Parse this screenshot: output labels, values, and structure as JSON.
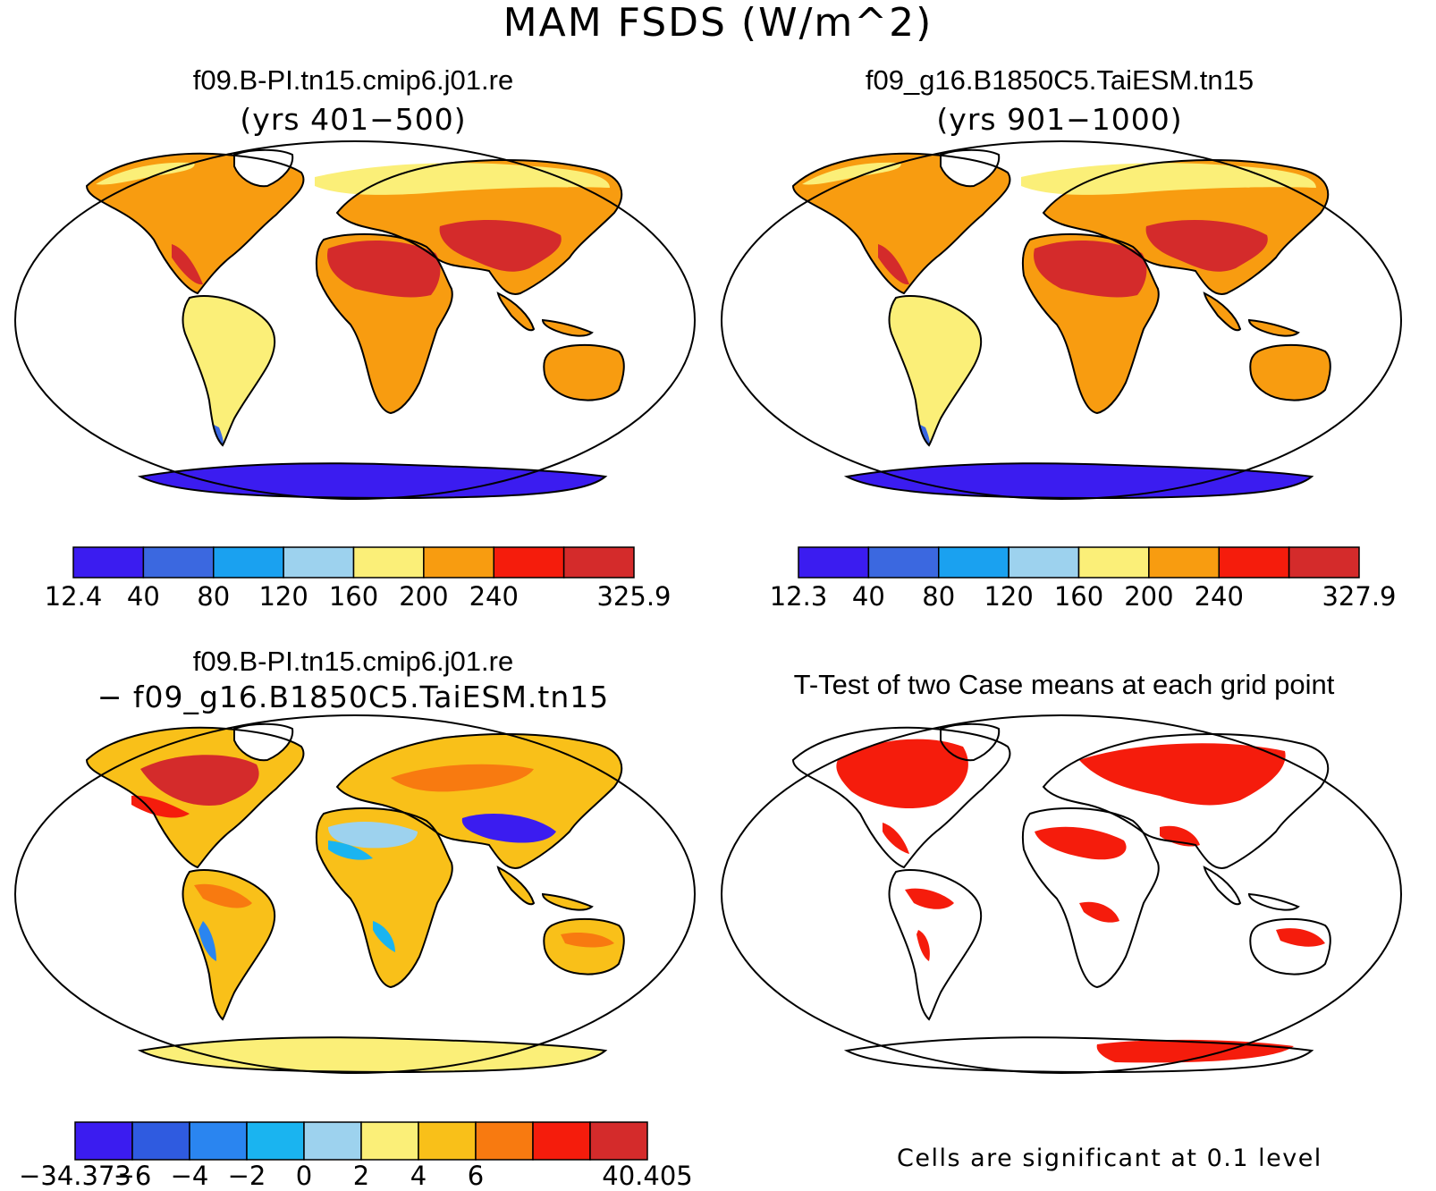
{
  "figure": {
    "title": "MAM FSDS (W/m^2)"
  },
  "panels": [
    {
      "id": "case1",
      "title": "f09.B-PI.tn15.cmip6.j01.re",
      "subtitle": "(yrs 401−500)",
      "colorbar": {
        "colors": [
          "#3b1cf0",
          "#3b68e0",
          "#1aa1f0",
          "#9dd2ee",
          "#fbef78",
          "#f89c10",
          "#f51c0c",
          "#d42b2b"
        ],
        "labels": [
          "12.4",
          "40",
          "80",
          "120",
          "160",
          "200",
          "240",
          "325.9"
        ]
      }
    },
    {
      "id": "case2",
      "title": "f09_g16.B1850C5.TaiESM.tn15",
      "subtitle": "(yrs 901−1000)",
      "colorbar": {
        "colors": [
          "#3b1cf0",
          "#3b68e0",
          "#1aa1f0",
          "#9dd2ee",
          "#fbef78",
          "#f89c10",
          "#f51c0c",
          "#d42b2b"
        ],
        "labels": [
          "12.3",
          "40",
          "80",
          "120",
          "160",
          "200",
          "240",
          "327.9"
        ]
      }
    },
    {
      "id": "diff",
      "title": "f09.B-PI.tn15.cmip6.j01.re",
      "subtitle": "− f09_g16.B1850C5.TaiESM.tn15",
      "colorbar": {
        "colors": [
          "#3b1cf0",
          "#2f5be0",
          "#2a85f0",
          "#1ab4f0",
          "#9dd2ee",
          "#fbef78",
          "#f9c019",
          "#f87a10",
          "#f51c0c",
          "#d42b2b"
        ],
        "labels": [
          "−34.373",
          "−6",
          "−4",
          "−2",
          "0",
          "2",
          "4",
          "6",
          "40.405"
        ]
      }
    },
    {
      "id": "ttest",
      "title": "T-Test of two Case means at each grid point",
      "note": "Cells are significant at 0.1 level"
    }
  ]
}
